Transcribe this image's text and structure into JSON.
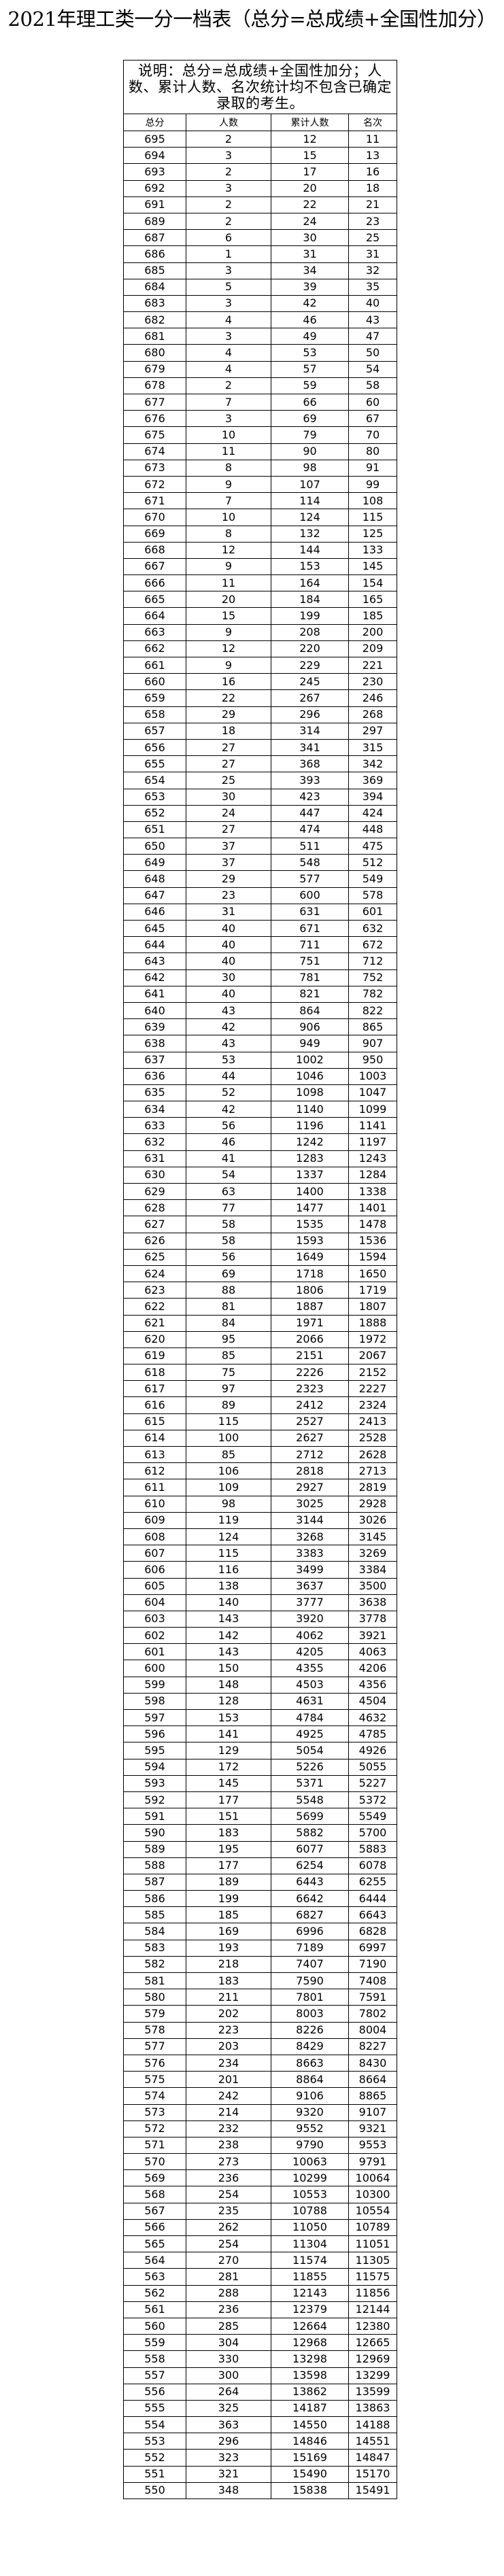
{
  "title": "2021年理工类一分一档表（总分=总成绩+全国性加分）",
  "note": "说明：总分=总成绩+全国性加分；人数、累计人数、名次统计均不包含已确定录取的考生。",
  "columns": [
    "总分",
    "人数",
    "累计人数",
    "名次"
  ],
  "rows": [
    [
      "695",
      "2",
      "12",
      "11"
    ],
    [
      "694",
      "3",
      "15",
      "13"
    ],
    [
      "693",
      "2",
      "17",
      "16"
    ],
    [
      "692",
      "3",
      "20",
      "18"
    ],
    [
      "691",
      "2",
      "22",
      "21"
    ],
    [
      "689",
      "2",
      "24",
      "23"
    ],
    [
      "687",
      "6",
      "30",
      "25"
    ],
    [
      "686",
      "1",
      "31",
      "31"
    ],
    [
      "685",
      "3",
      "34",
      "32"
    ],
    [
      "684",
      "5",
      "39",
      "35"
    ],
    [
      "683",
      "3",
      "42",
      "40"
    ],
    [
      "682",
      "4",
      "46",
      "43"
    ],
    [
      "681",
      "3",
      "49",
      "47"
    ],
    [
      "680",
      "4",
      "53",
      "50"
    ],
    [
      "679",
      "4",
      "57",
      "54"
    ],
    [
      "678",
      "2",
      "59",
      "58"
    ],
    [
      "677",
      "7",
      "66",
      "60"
    ],
    [
      "676",
      "3",
      "69",
      "67"
    ],
    [
      "675",
      "10",
      "79",
      "70"
    ],
    [
      "674",
      "11",
      "90",
      "80"
    ],
    [
      "673",
      "8",
      "98",
      "91"
    ],
    [
      "672",
      "9",
      "107",
      "99"
    ],
    [
      "671",
      "7",
      "114",
      "108"
    ],
    [
      "670",
      "10",
      "124",
      "115"
    ],
    [
      "669",
      "8",
      "132",
      "125"
    ],
    [
      "668",
      "12",
      "144",
      "133"
    ],
    [
      "667",
      "9",
      "153",
      "145"
    ],
    [
      "666",
      "11",
      "164",
      "154"
    ],
    [
      "665",
      "20",
      "184",
      "165"
    ],
    [
      "664",
      "15",
      "199",
      "185"
    ],
    [
      "663",
      "9",
      "208",
      "200"
    ],
    [
      "662",
      "12",
      "220",
      "209"
    ],
    [
      "661",
      "9",
      "229",
      "221"
    ],
    [
      "660",
      "16",
      "245",
      "230"
    ],
    [
      "659",
      "22",
      "267",
      "246"
    ],
    [
      "658",
      "29",
      "296",
      "268"
    ],
    [
      "657",
      "18",
      "314",
      "297"
    ],
    [
      "656",
      "27",
      "341",
      "315"
    ],
    [
      "655",
      "27",
      "368",
      "342"
    ],
    [
      "654",
      "25",
      "393",
      "369"
    ],
    [
      "653",
      "30",
      "423",
      "394"
    ],
    [
      "652",
      "24",
      "447",
      "424"
    ],
    [
      "651",
      "27",
      "474",
      "448"
    ],
    [
      "650",
      "37",
      "511",
      "475"
    ],
    [
      "649",
      "37",
      "548",
      "512"
    ],
    [
      "648",
      "29",
      "577",
      "549"
    ],
    [
      "647",
      "23",
      "600",
      "578"
    ],
    [
      "646",
      "31",
      "631",
      "601"
    ],
    [
      "645",
      "40",
      "671",
      "632"
    ],
    [
      "644",
      "40",
      "711",
      "672"
    ],
    [
      "643",
      "40",
      "751",
      "712"
    ],
    [
      "642",
      "30",
      "781",
      "752"
    ],
    [
      "641",
      "40",
      "821",
      "782"
    ],
    [
      "640",
      "43",
      "864",
      "822"
    ],
    [
      "639",
      "42",
      "906",
      "865"
    ],
    [
      "638",
      "43",
      "949",
      "907"
    ],
    [
      "637",
      "53",
      "1002",
      "950"
    ],
    [
      "636",
      "44",
      "1046",
      "1003"
    ],
    [
      "635",
      "52",
      "1098",
      "1047"
    ],
    [
      "634",
      "42",
      "1140",
      "1099"
    ],
    [
      "633",
      "56",
      "1196",
      "1141"
    ],
    [
      "632",
      "46",
      "1242",
      "1197"
    ],
    [
      "631",
      "41",
      "1283",
      "1243"
    ],
    [
      "630",
      "54",
      "1337",
      "1284"
    ],
    [
      "629",
      "63",
      "1400",
      "1338"
    ],
    [
      "628",
      "77",
      "1477",
      "1401"
    ],
    [
      "627",
      "58",
      "1535",
      "1478"
    ],
    [
      "626",
      "58",
      "1593",
      "1536"
    ],
    [
      "625",
      "56",
      "1649",
      "1594"
    ],
    [
      "624",
      "69",
      "1718",
      "1650"
    ],
    [
      "623",
      "88",
      "1806",
      "1719"
    ],
    [
      "622",
      "81",
      "1887",
      "1807"
    ],
    [
      "621",
      "84",
      "1971",
      "1888"
    ],
    [
      "620",
      "95",
      "2066",
      "1972"
    ],
    [
      "619",
      "85",
      "2151",
      "2067"
    ],
    [
      "618",
      "75",
      "2226",
      "2152"
    ],
    [
      "617",
      "97",
      "2323",
      "2227"
    ],
    [
      "616",
      "89",
      "2412",
      "2324"
    ],
    [
      "615",
      "115",
      "2527",
      "2413"
    ],
    [
      "614",
      "100",
      "2627",
      "2528"
    ],
    [
      "613",
      "85",
      "2712",
      "2628"
    ],
    [
      "612",
      "106",
      "2818",
      "2713"
    ],
    [
      "611",
      "109",
      "2927",
      "2819"
    ],
    [
      "610",
      "98",
      "3025",
      "2928"
    ],
    [
      "609",
      "119",
      "3144",
      "3026"
    ],
    [
      "608",
      "124",
      "3268",
      "3145"
    ],
    [
      "607",
      "115",
      "3383",
      "3269"
    ],
    [
      "606",
      "116",
      "3499",
      "3384"
    ],
    [
      "605",
      "138",
      "3637",
      "3500"
    ],
    [
      "604",
      "140",
      "3777",
      "3638"
    ],
    [
      "603",
      "143",
      "3920",
      "3778"
    ],
    [
      "602",
      "142",
      "4062",
      "3921"
    ],
    [
      "601",
      "143",
      "4205",
      "4063"
    ],
    [
      "600",
      "150",
      "4355",
      "4206"
    ],
    [
      "599",
      "148",
      "4503",
      "4356"
    ],
    [
      "598",
      "128",
      "4631",
      "4504"
    ],
    [
      "597",
      "153",
      "4784",
      "4632"
    ],
    [
      "596",
      "141",
      "4925",
      "4785"
    ],
    [
      "595",
      "129",
      "5054",
      "4926"
    ],
    [
      "594",
      "172",
      "5226",
      "5055"
    ],
    [
      "593",
      "145",
      "5371",
      "5227"
    ],
    [
      "592",
      "177",
      "5548",
      "5372"
    ],
    [
      "591",
      "151",
      "5699",
      "5549"
    ],
    [
      "590",
      "183",
      "5882",
      "5700"
    ],
    [
      "589",
      "195",
      "6077",
      "5883"
    ],
    [
      "588",
      "177",
      "6254",
      "6078"
    ],
    [
      "587",
      "189",
      "6443",
      "6255"
    ],
    [
      "586",
      "199",
      "6642",
      "6444"
    ],
    [
      "585",
      "185",
      "6827",
      "6643"
    ],
    [
      "584",
      "169",
      "6996",
      "6828"
    ],
    [
      "583",
      "193",
      "7189",
      "6997"
    ],
    [
      "582",
      "218",
      "7407",
      "7190"
    ],
    [
      "581",
      "183",
      "7590",
      "7408"
    ],
    [
      "580",
      "211",
      "7801",
      "7591"
    ],
    [
      "579",
      "202",
      "8003",
      "7802"
    ],
    [
      "578",
      "223",
      "8226",
      "8004"
    ],
    [
      "577",
      "203",
      "8429",
      "8227"
    ],
    [
      "576",
      "234",
      "8663",
      "8430"
    ],
    [
      "575",
      "201",
      "8864",
      "8664"
    ],
    [
      "574",
      "242",
      "9106",
      "8865"
    ],
    [
      "573",
      "214",
      "9320",
      "9107"
    ],
    [
      "572",
      "232",
      "9552",
      "9321"
    ],
    [
      "571",
      "238",
      "9790",
      "9553"
    ],
    [
      "570",
      "273",
      "10063",
      "9791"
    ],
    [
      "569",
      "236",
      "10299",
      "10064"
    ],
    [
      "568",
      "254",
      "10553",
      "10300"
    ],
    [
      "567",
      "235",
      "10788",
      "10554"
    ],
    [
      "566",
      "262",
      "11050",
      "10789"
    ],
    [
      "565",
      "254",
      "11304",
      "11051"
    ],
    [
      "564",
      "270",
      "11574",
      "11305"
    ],
    [
      "563",
      "281",
      "11855",
      "11575"
    ],
    [
      "562",
      "288",
      "12143",
      "11856"
    ],
    [
      "561",
      "236",
      "12379",
      "12144"
    ],
    [
      "560",
      "285",
      "12664",
      "12380"
    ],
    [
      "559",
      "304",
      "12968",
      "12665"
    ],
    [
      "558",
      "330",
      "13298",
      "12969"
    ],
    [
      "557",
      "300",
      "13598",
      "13299"
    ],
    [
      "556",
      "264",
      "13862",
      "13599"
    ],
    [
      "555",
      "325",
      "14187",
      "13863"
    ],
    [
      "554",
      "363",
      "14550",
      "14188"
    ],
    [
      "553",
      "296",
      "14846",
      "14551"
    ],
    [
      "552",
      "323",
      "15169",
      "14847"
    ],
    [
      "551",
      "321",
      "15490",
      "15170"
    ],
    [
      "550",
      "348",
      "15838",
      "15491"
    ]
  ]
}
